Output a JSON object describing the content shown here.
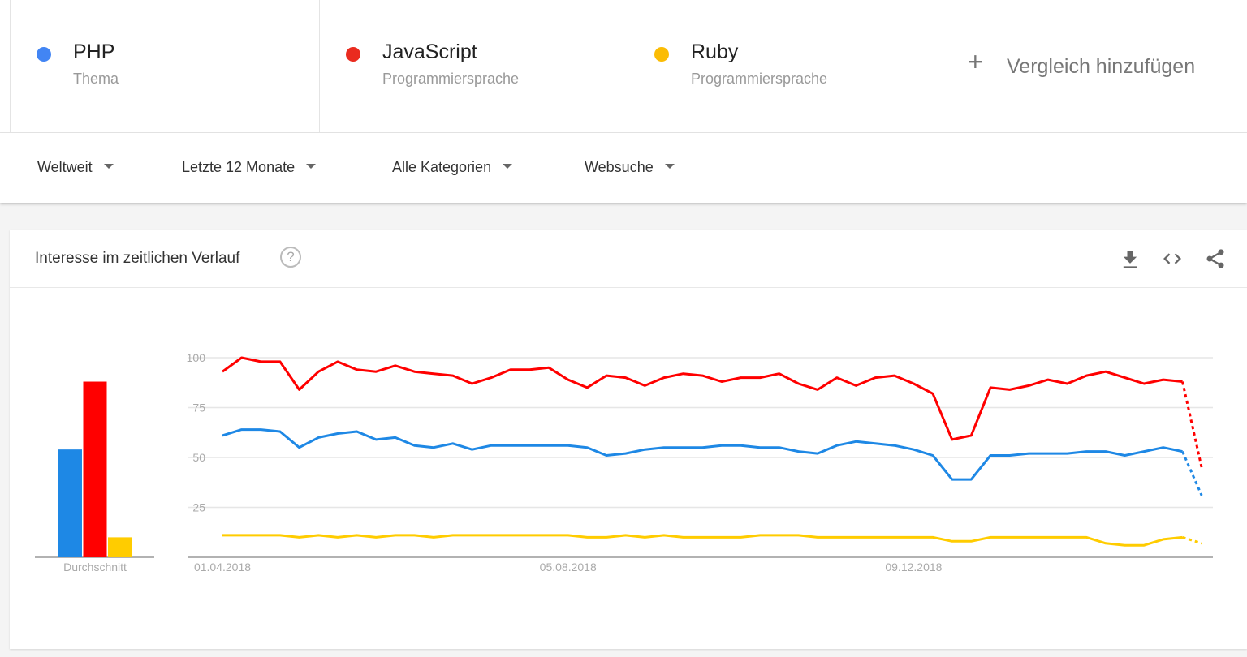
{
  "terms": [
    {
      "name": "PHP",
      "subtitle": "Thema",
      "color": "#4285f4"
    },
    {
      "name": "JavaScript",
      "subtitle": "Programmiersprache",
      "color": "#ea2b1f"
    },
    {
      "name": "Ruby",
      "subtitle": "Programmiersprache",
      "color": "#fbbc04"
    }
  ],
  "add_compare": {
    "icon": "plus-icon",
    "label": "Vergleich hinzufügen"
  },
  "filters": [
    "Weltweit",
    "Letzte 12 Monate",
    "Alle Kategorien",
    "Websuche"
  ],
  "card": {
    "title": "Interesse im zeitlichen Verlauf",
    "help_icon": "?",
    "tools": [
      "download-icon",
      "embed-code-icon",
      "share-icon"
    ]
  },
  "chart_data": [
    {
      "type": "bar",
      "categories": [
        "PHP",
        "JavaScript",
        "Ruby"
      ],
      "values": [
        54,
        88,
        10
      ],
      "colors": [
        "#1e88e5",
        "#ff0000",
        "#ffcc00"
      ],
      "xlabel": "Durchschnitt",
      "ylim": [
        0,
        100
      ]
    },
    {
      "type": "line",
      "x": [
        "01.04.2018",
        "08.04.2018",
        "15.04.2018",
        "22.04.2018",
        "29.04.2018",
        "06.05.2018",
        "13.05.2018",
        "20.05.2018",
        "27.05.2018",
        "03.06.2018",
        "10.06.2018",
        "17.06.2018",
        "24.06.2018",
        "01.07.2018",
        "08.07.2018",
        "15.07.2018",
        "22.07.2018",
        "29.07.2018",
        "05.08.2018",
        "12.08.2018",
        "19.08.2018",
        "26.08.2018",
        "02.09.2018",
        "09.09.2018",
        "16.09.2018",
        "23.09.2018",
        "30.09.2018",
        "07.10.2018",
        "14.10.2018",
        "21.10.2018",
        "28.10.2018",
        "04.11.2018",
        "11.11.2018",
        "18.11.2018",
        "25.11.2018",
        "02.12.2018",
        "09.12.2018",
        "16.12.2018",
        "23.12.2018",
        "30.12.2018",
        "06.01.2019",
        "13.01.2019",
        "20.01.2019",
        "27.01.2019",
        "03.02.2019",
        "10.02.2019",
        "17.02.2019",
        "24.02.2019",
        "03.03.2019",
        "10.03.2019",
        "17.03.2019",
        "24.03.2019"
      ],
      "x_tick_labels": [
        "01.04.2018",
        "05.08.2018",
        "09.12.2018"
      ],
      "y_ticks": [
        25,
        50,
        75,
        100
      ],
      "ylim": [
        0,
        100
      ],
      "grid": true,
      "last_point_partial": true,
      "series": [
        {
          "name": "PHP",
          "color": "#1e88e5",
          "values": [
            61,
            64,
            64,
            63,
            55,
            60,
            62,
            63,
            59,
            60,
            56,
            55,
            57,
            54,
            56,
            56,
            56,
            56,
            56,
            55,
            51,
            52,
            54,
            55,
            55,
            55,
            56,
            56,
            55,
            55,
            53,
            52,
            56,
            58,
            57,
            56,
            54,
            51,
            39,
            39,
            51,
            51,
            52,
            52,
            52,
            53,
            53,
            51,
            53,
            55,
            53,
            31
          ]
        },
        {
          "name": "JavaScript",
          "color": "#ff0000",
          "values": [
            93,
            100,
            98,
            98,
            84,
            93,
            98,
            94,
            93,
            96,
            93,
            92,
            91,
            87,
            90,
            94,
            94,
            95,
            89,
            85,
            91,
            90,
            86,
            90,
            92,
            91,
            88,
            90,
            90,
            92,
            87,
            84,
            90,
            86,
            90,
            91,
            87,
            82,
            59,
            61,
            85,
            84,
            86,
            89,
            87,
            91,
            93,
            90,
            87,
            89,
            88,
            45
          ]
        },
        {
          "name": "Ruby",
          "color": "#ffcc00",
          "values": [
            11,
            11,
            11,
            11,
            10,
            11,
            10,
            11,
            10,
            11,
            11,
            10,
            11,
            11,
            11,
            11,
            11,
            11,
            11,
            10,
            10,
            11,
            10,
            11,
            10,
            10,
            10,
            10,
            11,
            11,
            11,
            10,
            10,
            10,
            10,
            10,
            10,
            10,
            8,
            8,
            10,
            10,
            10,
            10,
            10,
            10,
            7,
            6,
            6,
            9,
            10,
            7
          ]
        }
      ]
    }
  ]
}
